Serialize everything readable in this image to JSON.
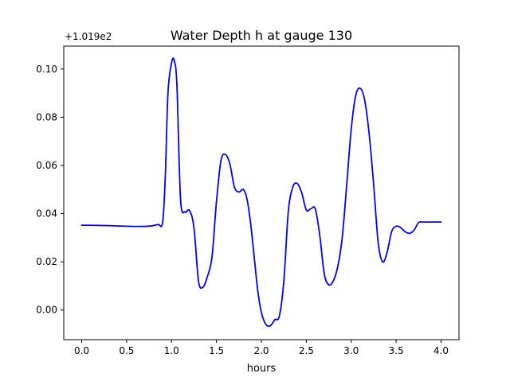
{
  "chart_data": {
    "type": "line",
    "title": "Water Depth h at gauge 130",
    "xlabel": "hours",
    "ylabel": "",
    "offset_label": "+1.019e2",
    "xlim": [
      -0.2,
      4.2
    ],
    "ylim": [
      -0.0123,
      0.1095
    ],
    "x_ticks": [
      0.0,
      0.5,
      1.0,
      1.5,
      2.0,
      2.5,
      3.0,
      3.5,
      4.0
    ],
    "x_tick_labels": [
      "0.0",
      "0.5",
      "1.0",
      "1.5",
      "2.0",
      "2.5",
      "3.0",
      "3.5",
      "4.0"
    ],
    "y_ticks": [
      0.0,
      0.02,
      0.04,
      0.06,
      0.08,
      0.1
    ],
    "y_tick_labels": [
      "0.00",
      "0.02",
      "0.04",
      "0.06",
      "0.08",
      "0.10"
    ],
    "grid": false,
    "line_color": "#0000ff",
    "series": [
      {
        "x": [
          0.0,
          0.2,
          0.4,
          0.6,
          0.75,
          0.85,
          0.9,
          0.93,
          0.96,
          1.0,
          1.03,
          1.06,
          1.1,
          1.15,
          1.2,
          1.25,
          1.3,
          1.35,
          1.4,
          1.45,
          1.5,
          1.55,
          1.6,
          1.65,
          1.7,
          1.75,
          1.8,
          1.84,
          1.88,
          1.92,
          1.96,
          2.0,
          2.05,
          2.1,
          2.15,
          2.2,
          2.25,
          2.3,
          2.35,
          2.4,
          2.45,
          2.5,
          2.55,
          2.6,
          2.65,
          2.7,
          2.75,
          2.8,
          2.85,
          2.9,
          2.95,
          3.0,
          3.05,
          3.1,
          3.15,
          3.2,
          3.25,
          3.3,
          3.35,
          3.4,
          3.45,
          3.5,
          3.55,
          3.6,
          3.65,
          3.7,
          3.75,
          3.8,
          3.85,
          3.9,
          3.95,
          4.0
        ],
        "values": [
          0.0352,
          0.0351,
          0.0349,
          0.0347,
          0.0348,
          0.0355,
          0.0362,
          0.055,
          0.09,
          0.1025,
          0.1035,
          0.093,
          0.046,
          0.0407,
          0.0413,
          0.034,
          0.012,
          0.0095,
          0.014,
          0.022,
          0.045,
          0.062,
          0.0645,
          0.0605,
          0.051,
          0.049,
          0.05,
          0.046,
          0.036,
          0.022,
          0.008,
          -0.001,
          -0.006,
          -0.0065,
          -0.004,
          -0.0025,
          0.012,
          0.041,
          0.051,
          0.0525,
          0.0485,
          0.0415,
          0.042,
          0.042,
          0.031,
          0.015,
          0.0105,
          0.012,
          0.018,
          0.03,
          0.052,
          0.075,
          0.089,
          0.092,
          0.087,
          0.073,
          0.052,
          0.028,
          0.02,
          0.024,
          0.0325,
          0.0348,
          0.0342,
          0.0325,
          0.0318,
          0.0332,
          0.0363,
          0.0365,
          0.0365,
          0.0365,
          0.0365,
          0.0365
        ]
      }
    ]
  }
}
